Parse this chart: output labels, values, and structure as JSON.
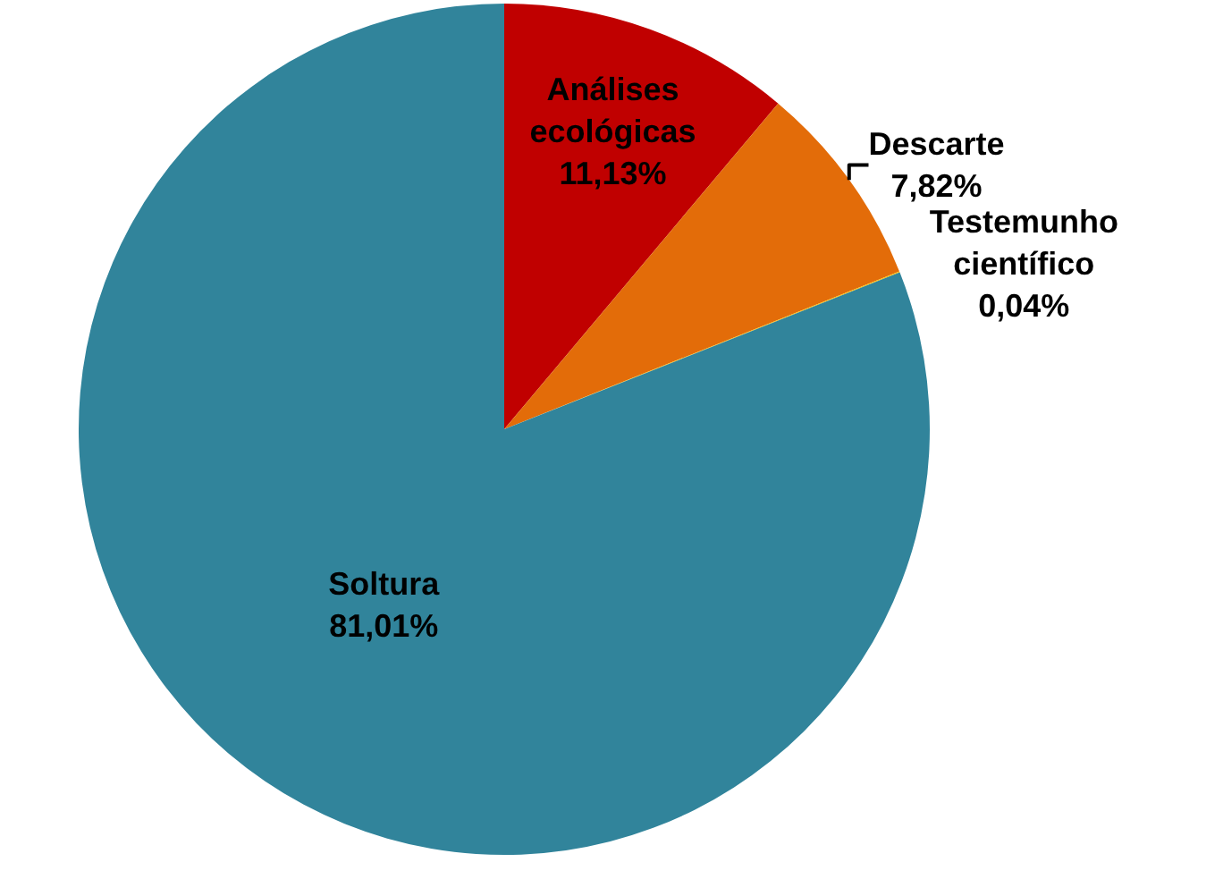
{
  "chart_data": {
    "type": "pie",
    "categories": [
      "Análises ecológicas",
      "Descarte",
      "Testemunho científico",
      "Soltura"
    ],
    "values": [
      11.13,
      7.82,
      0.04,
      81.01
    ],
    "value_labels": [
      "11,13%",
      "7,82%",
      "0,04%",
      "81,01%"
    ],
    "colors": [
      "#c00000",
      "#e36c09",
      "#ffc000",
      "#31849b"
    ]
  }
}
